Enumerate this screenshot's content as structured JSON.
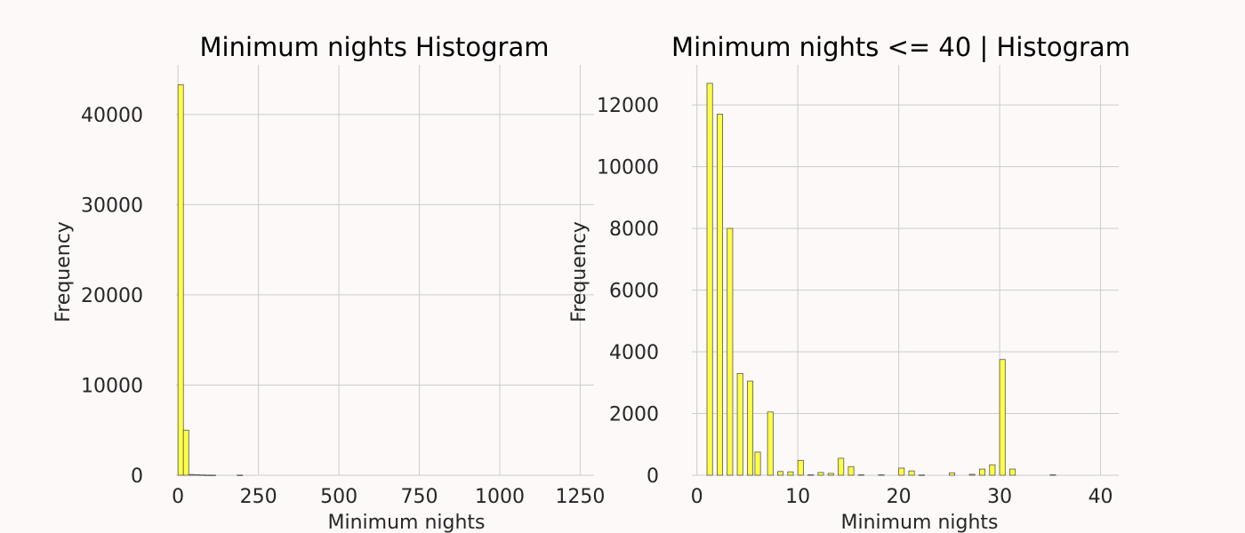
{
  "colors": {
    "background": "#fcf9f8",
    "bar": "#ffff44",
    "bar_edge": "#555555",
    "grid": "#cccccc"
  },
  "chart_data": [
    {
      "type": "bar",
      "title": "Minimum nights Histogram",
      "xlabel": "Minimum nights",
      "ylabel": "Frequency",
      "xlim": [
        -6,
        1293
      ],
      "ylim": [
        0,
        45500
      ],
      "xticks": [
        0,
        250,
        500,
        750,
        1000,
        1250
      ],
      "yticks": [
        0,
        10000,
        20000,
        30000,
        40000
      ],
      "grid": true,
      "bin_width": 16.7,
      "bars": [
        {
          "x": 0.0,
          "value": 43300
        },
        {
          "x": 16.7,
          "value": 5000
        },
        {
          "x": 33.4,
          "value": 80
        },
        {
          "x": 50.1,
          "value": 60
        },
        {
          "x": 66.8,
          "value": 40
        },
        {
          "x": 83.5,
          "value": 20
        },
        {
          "x": 100.2,
          "value": 15
        },
        {
          "x": 183.7,
          "value": 20
        }
      ]
    },
    {
      "type": "bar",
      "title": "Minimum nights <= 40 | Histogram",
      "xlabel": "Minimum nights",
      "ylabel": "Frequency",
      "xlim": [
        -0.5,
        41.8
      ],
      "ylim": [
        0,
        13300
      ],
      "xticks": [
        0,
        10,
        20,
        30,
        40
      ],
      "yticks": [
        0,
        2000,
        4000,
        6000,
        8000,
        10000,
        12000
      ],
      "grid": true,
      "bin_width": 0.55,
      "bars": [
        {
          "x": 1.0,
          "value": 12700
        },
        {
          "x": 2.0,
          "value": 11700
        },
        {
          "x": 3.0,
          "value": 8000
        },
        {
          "x": 4.0,
          "value": 3300
        },
        {
          "x": 5.0,
          "value": 3050
        },
        {
          "x": 5.75,
          "value": 750
        },
        {
          "x": 7.0,
          "value": 2050
        },
        {
          "x": 8.0,
          "value": 120
        },
        {
          "x": 9.0,
          "value": 110
        },
        {
          "x": 10.0,
          "value": 480
        },
        {
          "x": 11.0,
          "value": 15
        },
        {
          "x": 12.0,
          "value": 90
        },
        {
          "x": 13.0,
          "value": 60
        },
        {
          "x": 14.0,
          "value": 550
        },
        {
          "x": 15.0,
          "value": 280
        },
        {
          "x": 16.0,
          "value": 15
        },
        {
          "x": 18.0,
          "value": 15
        },
        {
          "x": 20.0,
          "value": 230
        },
        {
          "x": 21.0,
          "value": 140
        },
        {
          "x": 22.0,
          "value": 10
        },
        {
          "x": 25.0,
          "value": 80
        },
        {
          "x": 27.0,
          "value": 30
        },
        {
          "x": 28.0,
          "value": 200
        },
        {
          "x": 29.0,
          "value": 340
        },
        {
          "x": 30.0,
          "value": 3750
        },
        {
          "x": 31.0,
          "value": 200
        },
        {
          "x": 35.0,
          "value": 15
        }
      ]
    }
  ]
}
